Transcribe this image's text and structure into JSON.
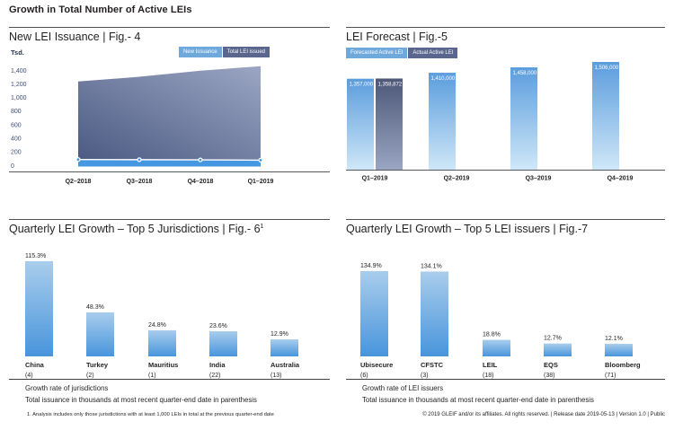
{
  "page": {
    "title": "Growth in Total Number of Active LEIs",
    "copyright": "© 2019 GLEIF and/or its affiliates. All rights reserved. | Release date 2019-05-13 | Version 1.0 | Public"
  },
  "colors": {
    "text": "#231f20",
    "ytick_blue": "#3f4e77",
    "legend_light_blue": "#6fa9dc",
    "legend_dark_slate": "#5a668e",
    "band_blue": "#4697e2",
    "area_gradient_dark": "#4c5a83",
    "area_gradient_light": "#9ba6c3",
    "bar_blue_top": "#5b9ddd",
    "bar_blue_bottom": "#cfe7f8",
    "bar_dark_top": "#4d5777",
    "bar_dark_bottom": "#9aa5c2",
    "cat_bar_top": "#a9cdec",
    "cat_bar_bottom": "#4895dc",
    "axis_line": "#58595b"
  },
  "chart_data": [
    {
      "id": "fig4",
      "type": "area",
      "title": "New LEI Issuance | Fig.- 4",
      "unit_label": "Tsd.",
      "categories": [
        "Q2–2018",
        "Q3–2018",
        "Q4–2018",
        "Q1–2019"
      ],
      "series": [
        {
          "name": "New Issuance",
          "values": [
            88,
            85,
            82,
            78
          ]
        },
        {
          "name": "Total LEI issued",
          "values": [
            1235,
            1305,
            1395,
            1460
          ]
        }
      ],
      "ylim": [
        0,
        1400
      ],
      "yticks": [
        0,
        200,
        400,
        600,
        800,
        1000,
        1200,
        1400
      ],
      "ytick_labels": [
        "0",
        "200",
        "400",
        "600",
        "800",
        "1,000",
        "1,200",
        "1,400"
      ],
      "legend_position": "top-right",
      "grid": false
    },
    {
      "id": "fig5",
      "type": "bar",
      "title": "LEI Forecast | Fig.-5",
      "categories": [
        "Q1–2019",
        "Q2–2019",
        "Q3–2019",
        "Q4–2019"
      ],
      "series": [
        {
          "name": "Forecasted Active LEI",
          "values": [
            1357000,
            1410000,
            1458000,
            1506000
          ],
          "labels": [
            "1,357,000",
            "1,410,000",
            "1,458,000",
            "1,506,000"
          ]
        },
        {
          "name": "Actual Active LEI",
          "values": [
            1358872,
            null,
            null,
            null
          ],
          "labels": [
            "1,358,872",
            null,
            null,
            null
          ]
        }
      ],
      "legend_position": "top-left",
      "grid": false
    },
    {
      "id": "fig6",
      "type": "bar",
      "title": "Quarterly LEI Growth – Top 5 Jurisdictions | Fig.- 6",
      "title_superscript": "1",
      "categories": [
        "China",
        "Turkey",
        "Mauritius",
        "India",
        "Australia"
      ],
      "category_counts": [
        "(4)",
        "(2)",
        "(1)",
        "(22)",
        "(13)"
      ],
      "values": [
        115.3,
        48.3,
        24.8,
        23.6,
        12.9
      ],
      "value_labels": [
        "115.3%",
        "48.3%",
        "24.8%",
        "23.6%",
        "12.9%"
      ],
      "caption": [
        "Growth rate of jurisdictions",
        "Total issuance in thousands at most recent quarter-end date in parenthesis"
      ],
      "footnote": "1. Analysis includes only those jurisdictions with at least 1,000 LEIs in total at the previous quarter-end date",
      "grid": false
    },
    {
      "id": "fig7",
      "type": "bar",
      "title": "Quarterly LEI Growth – Top 5 LEI issuers | Fig.-7",
      "categories": [
        "Ubisecure",
        "CFSTC",
        "LEIL",
        "EQS",
        "Bloomberg"
      ],
      "category_counts": [
        "(6)",
        "(3)",
        "(18)",
        "(38)",
        "(71)"
      ],
      "values": [
        134.9,
        134.1,
        18.8,
        12.7,
        12.1
      ],
      "value_labels": [
        "134.9%",
        "134.1%",
        "18.8%",
        "12.7%",
        "12.1%"
      ],
      "caption": [
        "Growth rate of LEI issuers",
        "Total issuance in thousands at most recent quarter-end date in parenthesis"
      ],
      "grid": false
    }
  ]
}
